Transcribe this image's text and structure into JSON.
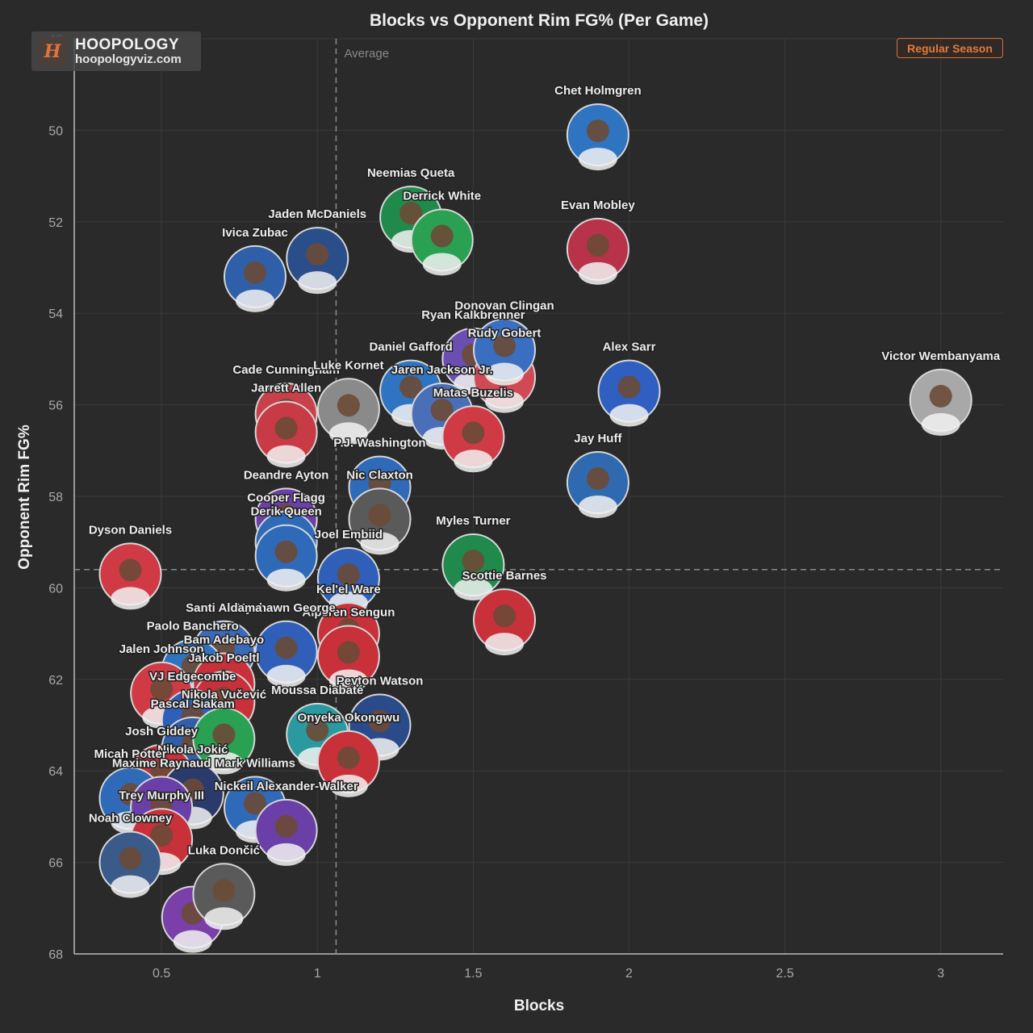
{
  "logo": {
    "name": "HOOPOLOGY",
    "site": "hoopologyviz.com",
    "glyph": "H"
  },
  "season_badge": "Regular Season",
  "chart_data": {
    "type": "scatter",
    "title": "Blocks vs Opponent Rim FG% (Per Game)",
    "xlabel": "Blocks",
    "ylabel": "Opponent Rim FG%",
    "xlim": [
      0.22,
      3.2
    ],
    "ylim": [
      68,
      48
    ],
    "y_inverted": true,
    "x_ticks": [
      "0.5",
      "1",
      "1.5",
      "2",
      "2.5",
      "3"
    ],
    "x_tick_values": [
      0.5,
      1,
      1.5,
      2,
      2.5,
      3
    ],
    "y_ticks": [
      "48",
      "50",
      "52",
      "54",
      "56",
      "58",
      "60",
      "62",
      "64",
      "66",
      "68"
    ],
    "y_tick_values": [
      48,
      50,
      52,
      54,
      56,
      58,
      60,
      62,
      64,
      66,
      68
    ],
    "grid": true,
    "average": {
      "label": "Average",
      "x": 1.06,
      "y": 59.6
    },
    "points": [
      {
        "name": "Chet Holmgren",
        "x": 1.9,
        "y": 50.1,
        "color": "#2f74c0"
      },
      {
        "name": "Neemias Queta",
        "x": 1.3,
        "y": 51.9,
        "color": "#1f8a4c"
      },
      {
        "name": "Derrick White",
        "x": 1.4,
        "y": 52.4,
        "color": "#2aa052"
      },
      {
        "name": "Evan Mobley",
        "x": 1.9,
        "y": 52.6,
        "color": "#b8324a"
      },
      {
        "name": "Jaden McDaniels",
        "x": 1.0,
        "y": 52.8,
        "color": "#2a4e8a"
      },
      {
        "name": "Ivica Zubac",
        "x": 0.8,
        "y": 53.2,
        "color": "#2f5fa8"
      },
      {
        "name": "Ryan Kalkbrenner",
        "x": 1.5,
        "y": 55.0,
        "color": "#6a4fb0"
      },
      {
        "name": "Rudy Gobert",
        "x": 1.6,
        "y": 55.4,
        "color": "#d04a55"
      },
      {
        "name": "Donovan Clingan",
        "x": 1.6,
        "y": 54.8,
        "color": "#3a6ec0"
      },
      {
        "name": "Daniel Gafford",
        "x": 1.3,
        "y": 55.7,
        "color": "#2f74c0"
      },
      {
        "name": "Jaren Jackson Jr.",
        "x": 1.4,
        "y": 56.2,
        "color": "#4a6fb8"
      },
      {
        "name": "Alex Sarr",
        "x": 2.0,
        "y": 55.7,
        "color": "#2f5fc0"
      },
      {
        "name": "Victor Wembanyama",
        "x": 3.0,
        "y": 55.9,
        "color": "#a8a8a8"
      },
      {
        "name": "Cade Cunningham",
        "x": 0.9,
        "y": 56.2,
        "color": "#c8404a"
      },
      {
        "name": "Luke Kornet",
        "x": 1.1,
        "y": 56.1,
        "color": "#8a8a8a"
      },
      {
        "name": "Jarrett Allen",
        "x": 0.9,
        "y": 56.6,
        "color": "#c83a45"
      },
      {
        "name": "Matas Buzelis",
        "x": 1.5,
        "y": 56.7,
        "color": "#d03a45"
      },
      {
        "name": "P.J. Washington",
        "x": 1.2,
        "y": 57.8,
        "color": "#2f6ab8"
      },
      {
        "name": "Jay Huff",
        "x": 1.9,
        "y": 57.7,
        "color": "#2f6ab0"
      },
      {
        "name": "Deandre Ayton",
        "x": 0.9,
        "y": 58.5,
        "color": "#6a3fa8"
      },
      {
        "name": "Nic Claxton",
        "x": 1.2,
        "y": 58.5,
        "color": "#5a5a5a"
      },
      {
        "name": "Cooper Flagg",
        "x": 0.9,
        "y": 59.0,
        "color": "#2f6ab8"
      },
      {
        "name": "Derik Queen",
        "x": 0.9,
        "y": 59.3,
        "color": "#2f6ab8"
      },
      {
        "name": "Joel Embiid",
        "x": 1.1,
        "y": 59.8,
        "color": "#2f5fb8"
      },
      {
        "name": "Myles Turner",
        "x": 1.5,
        "y": 59.5,
        "color": "#1f8a4c"
      },
      {
        "name": "Dyson Daniels",
        "x": 0.4,
        "y": 59.7,
        "color": "#d03a45"
      },
      {
        "name": "Scottie Barnes",
        "x": 1.6,
        "y": 60.7,
        "color": "#c8303a"
      },
      {
        "name": "Kel'el Ware",
        "x": 1.1,
        "y": 61.0,
        "color": "#c8303a"
      },
      {
        "name": "Alperen Sengun",
        "x": 1.1,
        "y": 61.5,
        "color": "#c8303a"
      },
      {
        "name": "Kyshawn George",
        "x": 0.9,
        "y": 61.4,
        "color": "#2f5fb8"
      },
      {
        "name": "Santi Aldama",
        "x": 0.7,
        "y": 61.4,
        "color": "#3a6ab8"
      },
      {
        "name": "Paolo Banchero",
        "x": 0.6,
        "y": 61.8,
        "color": "#2f74c0"
      },
      {
        "name": "Bam Adebayo",
        "x": 0.7,
        "y": 62.1,
        "color": "#c8303a"
      },
      {
        "name": "Jalen Johnson",
        "x": 0.5,
        "y": 62.3,
        "color": "#d03a45"
      },
      {
        "name": "Jakob Poeltl",
        "x": 0.7,
        "y": 62.5,
        "color": "#c8303a"
      },
      {
        "name": "VJ Edgecombe",
        "x": 0.6,
        "y": 62.9,
        "color": "#2f5fb8"
      },
      {
        "name": "Peyton Watson",
        "x": 1.2,
        "y": 63.0,
        "color": "#2a4a8a"
      },
      {
        "name": "Moussa Diabaté",
        "x": 1.0,
        "y": 63.2,
        "color": "#2a9aa0"
      },
      {
        "name": "Onyeka Okongwu",
        "x": 1.1,
        "y": 63.8,
        "color": "#c8303a"
      },
      {
        "name": "Pascal Siakam",
        "x": 0.6,
        "y": 63.5,
        "color": "#2f5fa8"
      },
      {
        "name": "Nikola Vučević",
        "x": 0.7,
        "y": 63.3,
        "color": "#2aa052"
      },
      {
        "name": "Josh Giddey",
        "x": 0.5,
        "y": 64.1,
        "color": "#c8303a"
      },
      {
        "name": "Nikola Jokić",
        "x": 0.6,
        "y": 64.5,
        "color": "#2a3a6a"
      },
      {
        "name": "Micah Potter",
        "x": 0.4,
        "y": 64.6,
        "color": "#2f6ab8"
      },
      {
        "name": "Maxime Raynaud",
        "x": 0.5,
        "y": 64.8,
        "color": "#6a3fa8"
      },
      {
        "name": "Mark Williams",
        "x": 0.8,
        "y": 64.8,
        "color": "#2f6ab8"
      },
      {
        "name": "Nickeil Alexander-Walker",
        "x": 0.9,
        "y": 65.3,
        "color": "#6a3fa8"
      },
      {
        "name": "Trey Murphy III",
        "x": 0.5,
        "y": 65.5,
        "color": "#c8303a"
      },
      {
        "name": "Noah Clowney",
        "x": 0.4,
        "y": 66.0,
        "color": "#3a5a8a"
      },
      {
        "name": "Luka Dončić",
        "x": 0.7,
        "y": 66.7,
        "color": "#5a5a5a"
      }
    ],
    "hidden_points": [
      {
        "name": "Luka Dončić (lower marker)",
        "x": 0.6,
        "y": 67.2,
        "color": "#7a3fa8"
      }
    ]
  }
}
